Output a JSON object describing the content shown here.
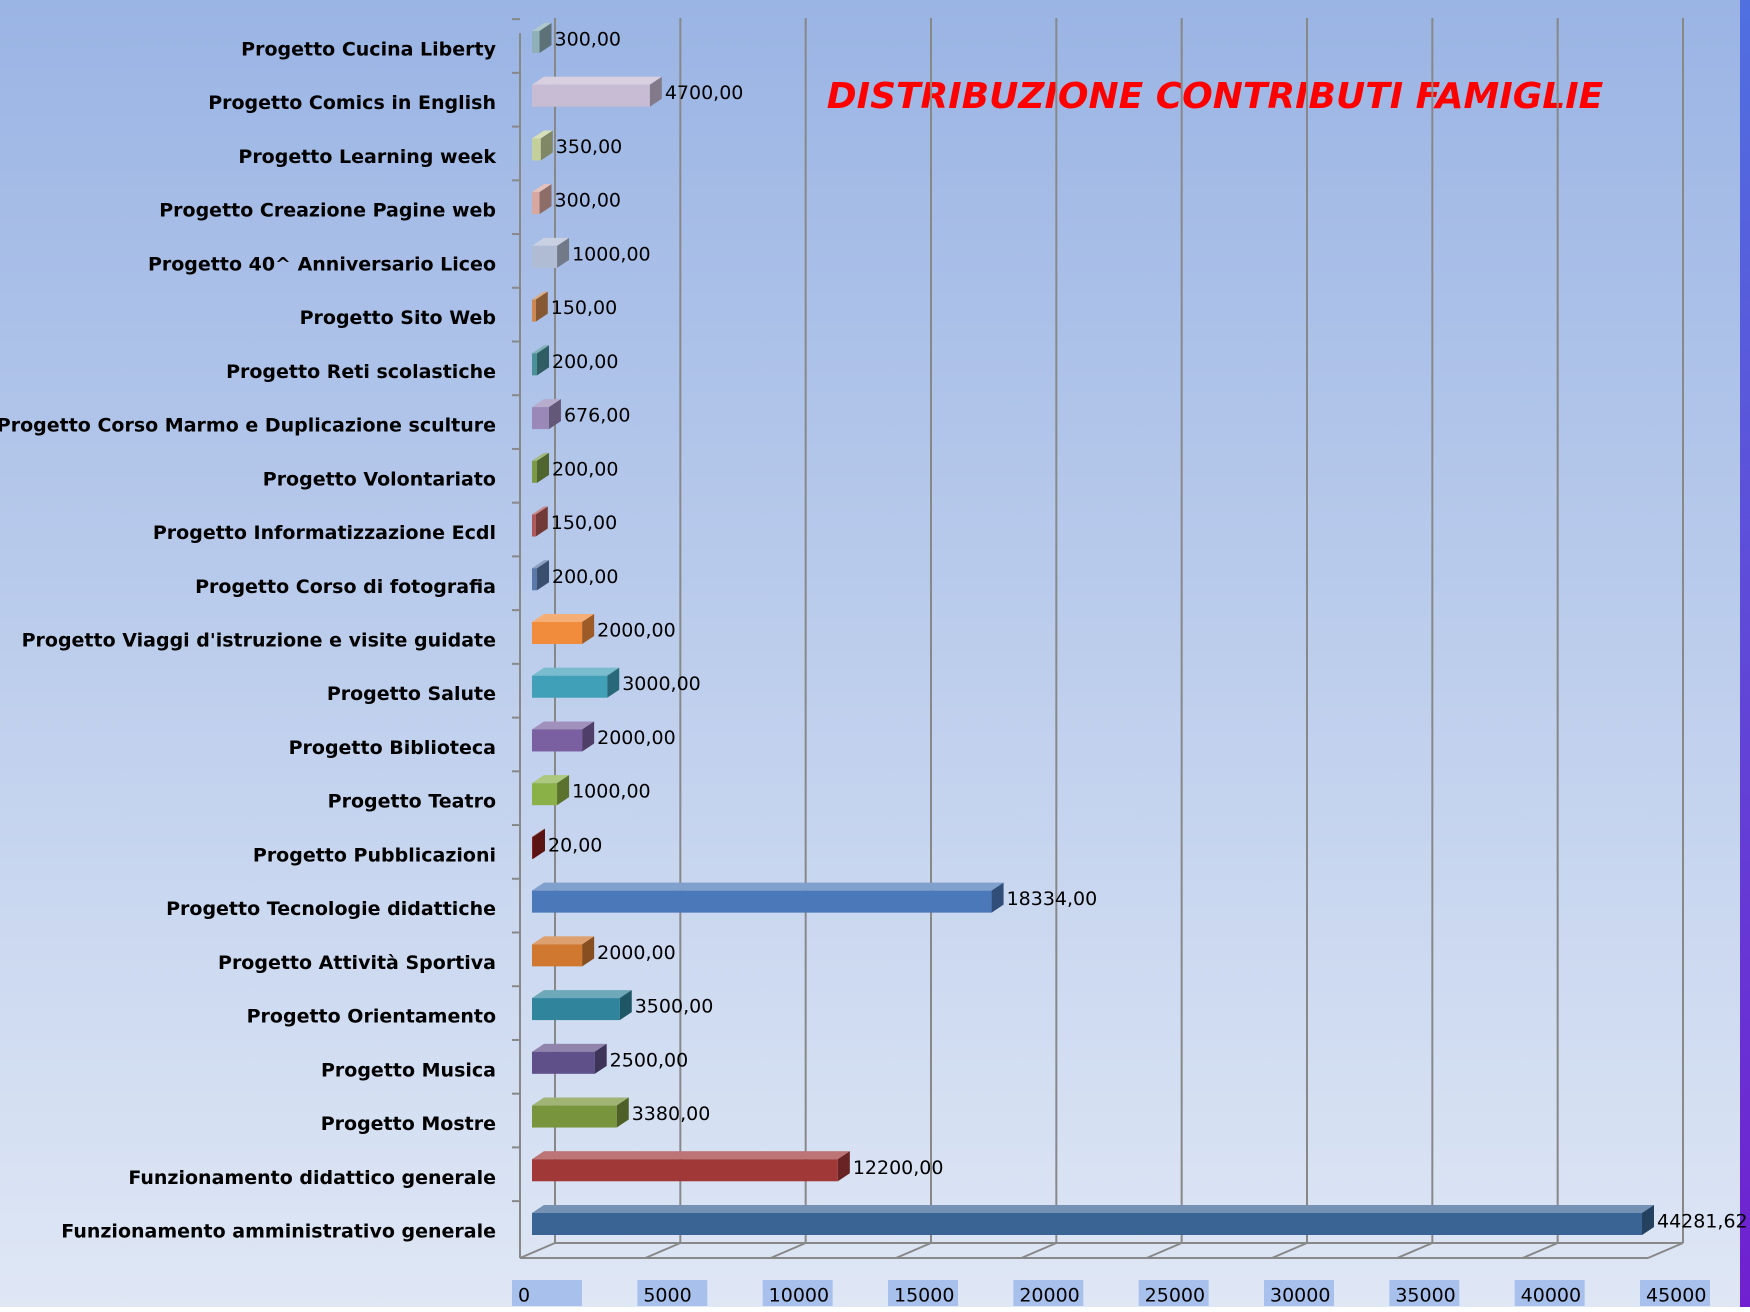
{
  "chart_data": {
    "type": "bar",
    "orientation": "horizontal",
    "title": "DISTRIBUZIONE CONTRIBUTI FAMIGLIE",
    "title_color": "#ff0000",
    "categories": [
      "Progetto Cucina Liberty",
      "Progetto Comics in English",
      "Progetto Learning week",
      "Progetto Creazione Pagine web",
      "Progetto 40^ Anniversario Liceo",
      "Progetto Sito Web",
      "Progetto Reti scolastiche",
      "Progetto Corso Marmo e Duplicazione sculture",
      "Progetto Volontariato",
      "Progetto Informatizzazione Ecdl",
      "Progetto Corso di fotografia",
      "Progetto Viaggi d'istruzione e visite guidate",
      "Progetto Salute",
      "Progetto Biblioteca",
      "Progetto Teatro",
      "Progetto Pubblicazioni",
      "Progetto Tecnologie didattiche",
      "Progetto Attività Sportiva",
      "Progetto Orientamento",
      "Progetto Musica",
      "Progetto Mostre",
      "Funzionamento didattico generale",
      "Funzionamento amministrativo generale"
    ],
    "values": [
      300,
      4700,
      350,
      300,
      1000,
      150,
      200,
      676,
      200,
      150,
      200,
      2000,
      3000,
      2000,
      1000,
      20,
      18334,
      2000,
      3500,
      2500,
      3380,
      12200,
      44281.62
    ],
    "value_labels": [
      "300,00",
      "4700,00",
      "350,00",
      "300,00",
      "1000,00",
      "150,00",
      "200,00",
      "676,00",
      "200,00",
      "150,00",
      "200,00",
      "2000,00",
      "3000,00",
      "2000,00",
      "1000,00",
      "20,00",
      "18334,00",
      "2000,00",
      "3500,00",
      "2500,00",
      "3380,00",
      "12200,00",
      "44281,62"
    ],
    "colors": [
      "#8fb0b8",
      "#c8bcd4",
      "#c4d09c",
      "#d8a8a0",
      "#b0bcd4",
      "#d08850",
      "#4a9098",
      "#9a88b8",
      "#7a9a48",
      "#b05858",
      "#5a78a8",
      "#f08c3c",
      "#40a0b8",
      "#7a60a0",
      "#8ab048",
      "#8a2020",
      "#4a78b8",
      "#d07830",
      "#30849c",
      "#60508a",
      "#78943c",
      "#a03838",
      "#3a6494"
    ],
    "xlim": [
      0,
      45000
    ],
    "xticks": [
      0,
      5000,
      10000,
      15000,
      20000,
      25000,
      30000,
      35000,
      40000,
      45000
    ],
    "grid": true
  }
}
